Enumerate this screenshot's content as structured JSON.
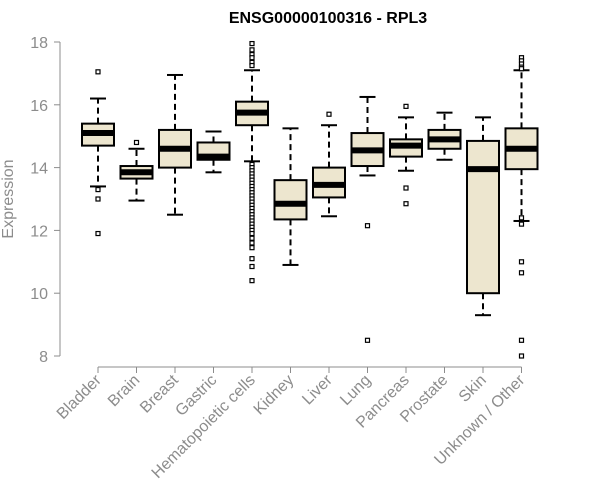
{
  "chart_data": {
    "type": "boxplot",
    "title": "ENSG00000100316 - RPL3",
    "xlabel": "",
    "ylabel": "Expression",
    "ylim": [
      8,
      18
    ],
    "yticks": [
      8,
      10,
      12,
      14,
      16,
      18
    ],
    "box_fill": "#ede6cf",
    "box_stroke": "#000000",
    "axis_color": "#8c8c8c",
    "categories": [
      "Bladder",
      "Brain",
      "Breast",
      "Gastric",
      "Hematopoietic cells",
      "Kidney",
      "Liver",
      "Lung",
      "Pancreas",
      "Prostate",
      "Skin",
      "Unknown / Other"
    ],
    "boxes": [
      {
        "name": "Bladder",
        "whisker_low": 13.4,
        "q1": 14.7,
        "median": 15.1,
        "q3": 15.4,
        "whisker_high": 16.2,
        "outliers": [
          17.05,
          13.3,
          13.0,
          11.9
        ]
      },
      {
        "name": "Brain",
        "whisker_low": 12.95,
        "q1": 13.65,
        "median": 13.85,
        "q3": 14.05,
        "whisker_high": 14.6,
        "outliers": [
          14.8
        ]
      },
      {
        "name": "Breast",
        "whisker_low": 12.5,
        "q1": 14.0,
        "median": 14.6,
        "q3": 15.2,
        "whisker_high": 16.95,
        "outliers": []
      },
      {
        "name": "Gastric",
        "whisker_low": 13.85,
        "q1": 14.25,
        "median": 14.35,
        "q3": 14.8,
        "whisker_high": 15.15,
        "outliers": []
      },
      {
        "name": "Hematopoietic cells",
        "whisker_low": 14.2,
        "q1": 15.35,
        "median": 15.75,
        "q3": 16.1,
        "whisker_high": 17.1,
        "outliers": [
          17.95,
          17.75,
          17.6,
          17.5,
          17.35,
          17.25,
          14.1,
          14.0,
          13.9,
          13.8,
          13.7,
          13.6,
          13.5,
          13.4,
          13.3,
          13.2,
          13.1,
          13.0,
          12.9,
          12.8,
          12.7,
          12.6,
          12.5,
          12.4,
          12.3,
          12.2,
          12.1,
          12.0,
          11.9,
          11.75,
          11.6,
          11.45,
          11.1,
          10.85,
          10.4
        ]
      },
      {
        "name": "Kidney",
        "whisker_low": 10.9,
        "q1": 12.35,
        "median": 12.85,
        "q3": 13.6,
        "whisker_high": 15.25,
        "outliers": []
      },
      {
        "name": "Liver",
        "whisker_low": 12.45,
        "q1": 13.05,
        "median": 13.45,
        "q3": 14.0,
        "whisker_high": 15.35,
        "outliers": [
          15.7
        ]
      },
      {
        "name": "Lung",
        "whisker_low": 13.75,
        "q1": 14.05,
        "median": 14.55,
        "q3": 15.1,
        "whisker_high": 16.25,
        "outliers": [
          12.15,
          8.5
        ]
      },
      {
        "name": "Pancreas",
        "whisker_low": 13.9,
        "q1": 14.35,
        "median": 14.7,
        "q3": 14.9,
        "whisker_high": 15.6,
        "outliers": [
          15.95,
          13.35,
          12.85
        ]
      },
      {
        "name": "Prostate",
        "whisker_low": 14.25,
        "q1": 14.6,
        "median": 14.9,
        "q3": 15.2,
        "whisker_high": 15.75,
        "outliers": []
      },
      {
        "name": "Skin",
        "whisker_low": 9.3,
        "q1": 10.0,
        "median": 13.95,
        "q3": 14.85,
        "whisker_high": 15.6,
        "outliers": []
      },
      {
        "name": "Unknown / Other",
        "whisker_low": 12.3,
        "q1": 13.95,
        "median": 14.6,
        "q3": 15.25,
        "whisker_high": 17.1,
        "outliers": [
          17.5,
          17.4,
          17.3,
          17.2,
          17.15,
          12.4,
          12.2,
          11.0,
          10.65,
          8.5,
          8.0
        ]
      }
    ]
  }
}
